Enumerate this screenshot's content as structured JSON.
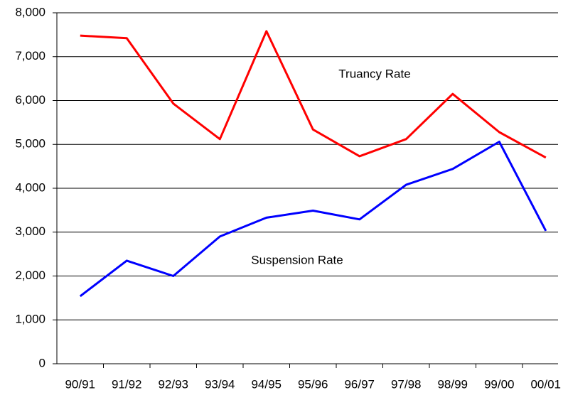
{
  "chart_data": {
    "type": "line",
    "categories": [
      "90/91",
      "91/92",
      "92/93",
      "93/94",
      "94/95",
      "95/96",
      "96/97",
      "97/98",
      "98/99",
      "99/00",
      "00/01"
    ],
    "series": [
      {
        "name": "Truancy Rate",
        "color": "#ff0000",
        "values": [
          7480,
          7420,
          5930,
          5120,
          7580,
          5340,
          4730,
          5120,
          6150,
          5280,
          4700
        ]
      },
      {
        "name": "Suspension Rate",
        "color": "#0000ff",
        "values": [
          1540,
          2350,
          2000,
          2900,
          3330,
          3490,
          3290,
          4080,
          4440,
          5060,
          3030
        ]
      }
    ],
    "ylim": [
      0,
      8000
    ],
    "yticks": [
      0,
      {
        "value": 1000,
        "label": "1,000"
      },
      {
        "value": 2000,
        "label": "2,000"
      },
      {
        "value": 3000,
        "label": "3,000"
      },
      {
        "value": 4000,
        "label": "4,000"
      },
      {
        "value": 5000,
        "label": "5,000"
      },
      {
        "value": 6000,
        "label": "6,000"
      },
      {
        "value": 7000,
        "label": "7,000"
      },
      {
        "value": 8000,
        "label": "8,000"
      }
    ],
    "grid": true
  }
}
